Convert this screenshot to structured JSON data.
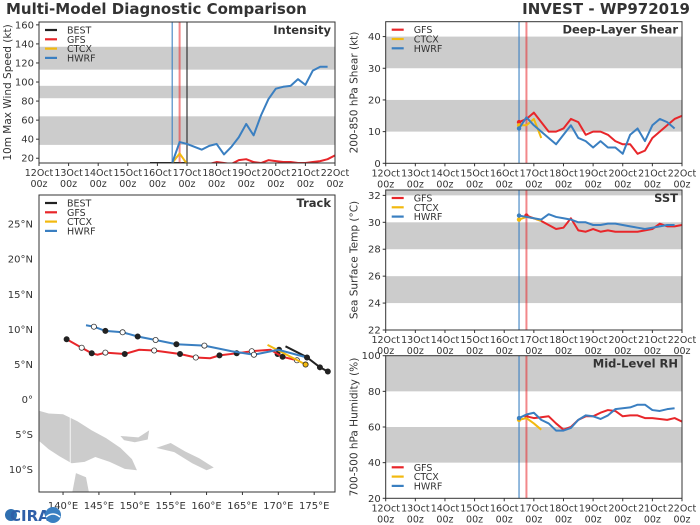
{
  "title_left": "Multi-Model Diagnostic Comparison",
  "title_right": "INVEST - WP972019",
  "colors": {
    "BEST": "#222222",
    "GFS": "#e8262a",
    "CTCX": "#f2b90f",
    "HWRF": "#3a7fc1",
    "band": "#cccccc"
  },
  "logo_text": "CIRA",
  "x_ticks": [
    "12Oct 00z",
    "13Oct 00z",
    "14Oct 00z",
    "15Oct 00z",
    "16Oct 00z",
    "17Oct 00z",
    "18Oct 00z",
    "19Oct 00z",
    "20Oct 00z",
    "21Oct 00z",
    "22Oct 00z"
  ],
  "chart_data": [
    {
      "id": "intensity",
      "type": "line",
      "title": "Intensity",
      "ylabel": "10m Max Wind Speed (kt)",
      "ylim": [
        15,
        163
      ],
      "yticks": [
        20,
        40,
        60,
        80,
        100,
        120,
        140,
        160
      ],
      "bands": [
        [
          34,
          64
        ],
        [
          83,
          96
        ],
        [
          113,
          137
        ]
      ],
      "legend": "top-left",
      "vlines": [
        {
          "time": "16Oct 12z",
          "model": "HWRF"
        },
        {
          "time": "16Oct 18z",
          "model": "GFS"
        },
        {
          "time": "17Oct 00z",
          "model": "BEST"
        }
      ],
      "times": [
        "16Oct 12z",
        "16Oct 18z",
        "17Oct 00z",
        "17Oct 06z",
        "17Oct 12z",
        "17Oct 18z",
        "18Oct 00z",
        "18Oct 06z",
        "18Oct 12z",
        "18Oct 18z",
        "19Oct 00z",
        "19Oct 06z",
        "19Oct 12z",
        "19Oct 18z",
        "20Oct 00z",
        "20Oct 06z",
        "20Oct 12z",
        "20Oct 18z",
        "21Oct 00z",
        "21Oct 06z",
        "21Oct 12z",
        "21Oct 18z",
        "22Oct 00z"
      ],
      "series": [
        {
          "name": "BEST",
          "times": [
            "15Oct 18z",
            "16Oct 00z",
            "16Oct 06z",
            "16Oct 12z",
            "16Oct 18z",
            "17Oct 00z"
          ],
          "values": [
            15,
            15,
            15,
            15,
            15,
            15
          ]
        },
        {
          "name": "GFS",
          "values": [
            null,
            15,
            14,
            13,
            13,
            14,
            16,
            15,
            14,
            18,
            19,
            16,
            15,
            18,
            17,
            16,
            16,
            15,
            15,
            16,
            17,
            19,
            23
          ]
        },
        {
          "name": "CTCX",
          "values": [
            15,
            25,
            14,
            null,
            null,
            null,
            null,
            null,
            null,
            null,
            null,
            null,
            null,
            null,
            null,
            null,
            null,
            null,
            null,
            null,
            null,
            null,
            null
          ]
        },
        {
          "name": "HWRF",
          "values": [
            15,
            37,
            35,
            32,
            29,
            33,
            35,
            24,
            32,
            42,
            56,
            44,
            65,
            82,
            93,
            95,
            96,
            103,
            97,
            112,
            116,
            116,
            null
          ]
        }
      ]
    },
    {
      "id": "shear",
      "type": "line",
      "title": "Deep-Layer Shear",
      "ylabel": "200-850 hPa Shear (kt)",
      "ylim": [
        0,
        44.7
      ],
      "yticks": [
        0,
        10,
        20,
        30,
        40
      ],
      "bands": [
        [
          10,
          20
        ],
        [
          30,
          40
        ]
      ],
      "legend": "top-left",
      "vlines": [
        {
          "time": "16Oct 12z",
          "model": "HWRF"
        },
        {
          "time": "16Oct 18z",
          "model": "GFS"
        }
      ],
      "times": [
        "16Oct 12z",
        "16Oct 18z",
        "17Oct 00z",
        "17Oct 06z",
        "17Oct 12z",
        "17Oct 18z",
        "18Oct 00z",
        "18Oct 06z",
        "18Oct 12z",
        "18Oct 18z",
        "19Oct 00z",
        "19Oct 06z",
        "19Oct 12z",
        "19Oct 18z",
        "20Oct 00z",
        "20Oct 06z",
        "20Oct 12z",
        "20Oct 18z",
        "21Oct 00z",
        "21Oct 06z",
        "21Oct 12z",
        "21Oct 18z",
        "22Oct 00z"
      ],
      "series": [
        {
          "name": "GFS",
          "values": [
            13,
            14,
            16,
            13,
            10,
            10,
            11,
            14,
            13,
            9,
            10,
            10,
            9,
            7,
            6,
            6,
            3,
            4,
            8,
            10,
            12,
            14,
            15
          ]
        },
        {
          "name": "CTCX",
          "values": [
            12,
            12,
            14,
            8,
            null,
            null,
            null,
            null,
            null,
            null,
            null,
            null,
            null,
            null,
            null,
            null,
            null,
            null,
            null,
            null,
            null,
            null,
            null
          ]
        },
        {
          "name": "HWRF",
          "values": [
            11,
            14.5,
            12,
            10,
            8,
            6,
            9,
            12,
            8,
            7,
            5,
            7,
            5,
            5,
            3,
            9,
            11,
            7,
            12,
            14,
            13,
            11,
            null
          ]
        }
      ]
    },
    {
      "id": "sst",
      "type": "line",
      "title": "SST",
      "ylabel": "Sea Surface Temp (°C)",
      "ylim": [
        22,
        32.4
      ],
      "yticks": [
        22,
        24,
        26,
        28,
        30,
        32
      ],
      "bands": [
        [
          24,
          26
        ],
        [
          28,
          30
        ],
        [
          32,
          32.4
        ]
      ],
      "legend": "top-left",
      "vlines": [
        {
          "time": "16Oct 12z",
          "model": "HWRF"
        },
        {
          "time": "16Oct 18z",
          "model": "GFS"
        }
      ],
      "times": [
        "16Oct 12z",
        "16Oct 18z",
        "17Oct 00z",
        "17Oct 06z",
        "17Oct 12z",
        "17Oct 18z",
        "18Oct 00z",
        "18Oct 06z",
        "18Oct 12z",
        "18Oct 18z",
        "19Oct 00z",
        "19Oct 06z",
        "19Oct 12z",
        "19Oct 18z",
        "20Oct 00z",
        "20Oct 06z",
        "20Oct 12z",
        "20Oct 18z",
        "21Oct 00z",
        "21Oct 06z",
        "21Oct 12z",
        "21Oct 18z",
        "22Oct 00z"
      ],
      "series": [
        {
          "name": "GFS",
          "values": [
            null,
            30.5,
            30.3,
            30.1,
            29.8,
            29.5,
            29.6,
            30.3,
            29.4,
            29.3,
            29.5,
            29.3,
            29.4,
            29.3,
            29.3,
            29.3,
            29.3,
            29.4,
            29.5,
            29.9,
            29.7,
            29.7,
            29.8
          ]
        },
        {
          "name": "CTCX",
          "values": [
            30.2,
            30.4,
            30.3,
            30.1,
            null,
            null,
            null,
            null,
            null,
            null,
            null,
            null,
            null,
            null,
            null,
            null,
            null,
            null,
            null,
            null,
            null,
            null,
            null
          ]
        },
        {
          "name": "HWRF",
          "values": [
            30.5,
            30.4,
            30.3,
            30.2,
            30.6,
            30.4,
            30.3,
            30.2,
            30.0,
            30.0,
            29.8,
            29.8,
            29.9,
            29.9,
            29.8,
            29.7,
            29.6,
            29.5,
            29.6,
            29.7,
            29.8,
            29.8,
            null
          ]
        }
      ]
    },
    {
      "id": "rh",
      "type": "line",
      "title": "Mid-Level RH",
      "ylabel": "700-500 hPa Humidity (%)",
      "ylim": [
        20,
        100
      ],
      "yticks": [
        20,
        40,
        60,
        80,
        100
      ],
      "bands": [
        [
          40,
          60
        ],
        [
          80,
          100
        ]
      ],
      "legend": "bottom-left",
      "vlines": [
        {
          "time": "16Oct 12z",
          "model": "HWRF"
        },
        {
          "time": "16Oct 18z",
          "model": "GFS"
        }
      ],
      "times": [
        "16Oct 12z",
        "16Oct 18z",
        "17Oct 00z",
        "17Oct 06z",
        "17Oct 12z",
        "17Oct 18z",
        "18Oct 00z",
        "18Oct 06z",
        "18Oct 12z",
        "18Oct 18z",
        "19Oct 00z",
        "19Oct 06z",
        "19Oct 12z",
        "19Oct 18z",
        "20Oct 00z",
        "20Oct 06z",
        "20Oct 12z",
        "20Oct 18z",
        "21Oct 00z",
        "21Oct 06z",
        "21Oct 12z",
        "21Oct 18z",
        "22Oct 00z"
      ],
      "series": [
        {
          "name": "GFS",
          "values": [
            null,
            66,
            65,
            65.5,
            66,
            62,
            58.5,
            60,
            64,
            66,
            66,
            68,
            69.5,
            69,
            66,
            66.5,
            66.5,
            65,
            65,
            64.5,
            64,
            65,
            63
          ]
        },
        {
          "name": "CTCX",
          "values": [
            64,
            65,
            62,
            58.5,
            null,
            null,
            null,
            null,
            null,
            null,
            null,
            null,
            null,
            null,
            null,
            null,
            null,
            null,
            null,
            null,
            null,
            null,
            null
          ]
        },
        {
          "name": "HWRF",
          "values": [
            65,
            67,
            68,
            64,
            62,
            58,
            58,
            59.5,
            64,
            66.5,
            66,
            64.5,
            66.5,
            70,
            70.5,
            71,
            72.5,
            72.5,
            69.5,
            69,
            70,
            70.5,
            null
          ]
        }
      ]
    },
    {
      "id": "track",
      "type": "line",
      "title": "Track",
      "xlim": [
        136.65,
        177.9
      ],
      "ylim": [
        -13.3,
        29.1
      ],
      "xticks": [
        {
          "v": 140,
          "label": "140°E"
        },
        {
          "v": 145,
          "label": "145°E"
        },
        {
          "v": 150,
          "label": "150°E"
        },
        {
          "v": 155,
          "label": "155°E"
        },
        {
          "v": 160,
          "label": "160°E"
        },
        {
          "v": 165,
          "label": "165°E"
        },
        {
          "v": 170,
          "label": "170°E"
        },
        {
          "v": 175,
          "label": "175°E"
        }
      ],
      "yticks": [
        {
          "v": 25,
          "label": "25°N"
        },
        {
          "v": 20,
          "label": "20°N"
        },
        {
          "v": 15,
          "label": "15°N"
        },
        {
          "v": 10,
          "label": "10°N"
        },
        {
          "v": 5,
          "label": "5°N"
        },
        {
          "v": 0,
          "label": "0°"
        },
        {
          "v": -5,
          "label": "5°S"
        },
        {
          "v": -10,
          "label": "10°S"
        }
      ],
      "legend": "top-left",
      "series": [
        {
          "name": "BEST",
          "points": [
            [
              171.0,
              7.5,
              "none"
            ],
            [
              173.9,
              6.0,
              "none"
            ],
            [
              175.8,
              4.5,
              "filled"
            ],
            [
              176.9,
              3.9,
              "filled"
            ]
          ],
          "extra_markers": [
            [
              170.1,
              7.0,
              "filled"
            ],
            [
              169.9,
              6.4,
              "filled"
            ]
          ]
        },
        {
          "name": "GFS",
          "points": [
            [
              140.5,
              8.5,
              "filled"
            ],
            [
              142.6,
              7.3,
              "open"
            ],
            [
              144.0,
              6.5,
              "filled"
            ],
            [
              144.8,
              6.3,
              "none"
            ],
            [
              145.9,
              6.6,
              "open"
            ],
            [
              148.6,
              6.4,
              "filled"
            ],
            [
              150.6,
              7.0,
              "none"
            ],
            [
              152.7,
              6.9,
              "open"
            ],
            [
              156.3,
              6.4,
              "filled"
            ],
            [
              158.5,
              5.9,
              "open"
            ],
            [
              160.5,
              5.8,
              "none"
            ],
            [
              161.8,
              6.2,
              "filled"
            ],
            [
              164.2,
              6.5,
              "filled"
            ],
            [
              166.3,
              6.8,
              "open"
            ],
            [
              168.9,
              7.0,
              "none"
            ],
            [
              170.6,
              6.0,
              "filled"
            ],
            [
              172.6,
              5.5,
              "open"
            ]
          ]
        },
        {
          "name": "CTCX",
          "points": [
            [
              168.5,
              7.7,
              "none"
            ],
            [
              173.8,
              4.9,
              "filled"
            ]
          ]
        },
        {
          "name": "HWRF",
          "points": [
            [
              143.2,
              10.5,
              "none"
            ],
            [
              144.3,
              10.3,
              "open"
            ],
            [
              145.9,
              9.7,
              "filled"
            ],
            [
              148.3,
              9.5,
              "open"
            ],
            [
              150.4,
              8.9,
              "filled"
            ],
            [
              152.9,
              8.4,
              "open"
            ],
            [
              155.8,
              7.8,
              "filled"
            ],
            [
              159.7,
              7.6,
              "open"
            ],
            [
              163.5,
              6.8,
              "none"
            ],
            [
              166.6,
              6.3,
              "open"
            ],
            [
              170.0,
              7.0,
              "none"
            ],
            [
              174.0,
              5.9,
              "filled"
            ]
          ]
        }
      ]
    }
  ]
}
